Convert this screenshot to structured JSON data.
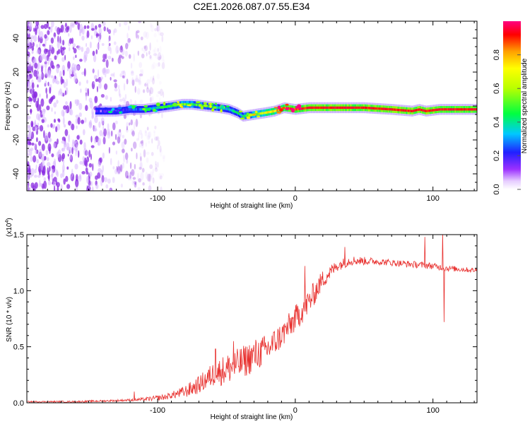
{
  "title": "C2E1.2026.087.07.55.E34",
  "chart_data": [
    {
      "type": "heatmap",
      "name": "spectrogram",
      "xlabel": "Height of straight line (km)",
      "ylabel": "Frequency (Hz)",
      "xlim": [
        -195,
        132
      ],
      "ylim": [
        -50,
        50
      ],
      "xticks": [
        -100,
        0,
        100
      ],
      "xtick_labels": [
        "-100",
        "0",
        "100"
      ],
      "yticks": [
        -40,
        -20,
        0,
        20,
        40
      ],
      "ytick_labels": [
        "-40",
        "-20",
        "0",
        "20",
        "40"
      ],
      "noise_region_km": [
        -195,
        -100
      ],
      "ridge": {
        "x": [
          -140,
          -130,
          -120,
          -110,
          -100,
          -90,
          -82,
          -75,
          -65,
          -55,
          -48,
          -42,
          -38,
          -30,
          -22,
          -15,
          -8,
          0,
          10,
          30,
          50,
          70,
          85,
          90,
          95,
          105,
          132
        ],
        "y": [
          -3,
          -3,
          -2,
          -2,
          -1,
          0,
          1,
          1,
          0,
          -1,
          -2,
          -4,
          -6,
          -5,
          -4,
          -3,
          -1,
          -2,
          -1,
          -1,
          -1,
          -2,
          -3,
          -2,
          -3,
          -2,
          -2
        ],
        "amplitude": [
          0.15,
          0.2,
          0.25,
          0.3,
          0.35,
          0.45,
          0.55,
          0.5,
          0.45,
          0.4,
          0.35,
          0.4,
          0.45,
          0.55,
          0.7,
          0.75,
          0.85,
          0.9,
          0.95,
          0.95,
          0.95,
          0.95,
          0.95,
          0.95,
          0.95,
          0.95,
          0.95
        ]
      },
      "colorbar": {
        "label": "Normalized spectral amplitude",
        "ticks": [
          0.0,
          0.2,
          0.4,
          0.6,
          0.8
        ],
        "tick_labels": [
          "0.0",
          "0.2",
          "0.4",
          "0.6",
          "0.8"
        ],
        "range": [
          0,
          1
        ]
      }
    },
    {
      "type": "line",
      "name": "snr",
      "xlabel": "Height of straight line (km)",
      "ylabel": "SNR (10 * v/v)",
      "multiplier_label": "(x10",
      "multiplier_exponent": "4",
      "multiplier_close": ")",
      "xlim": [
        -195,
        132
      ],
      "ylim": [
        0,
        1.5
      ],
      "xticks": [
        -100,
        0,
        100
      ],
      "xtick_labels": [
        "-100",
        "0",
        "100"
      ],
      "yticks": [
        0,
        0.5,
        1.0,
        1.5
      ],
      "ytick_labels": [
        "0.0",
        "0.5",
        "1.0",
        "1.5"
      ],
      "line_color": "#e8312f",
      "trend": {
        "x": [
          -195,
          -160,
          -130,
          -110,
          -95,
          -80,
          -70,
          -60,
          -50,
          -40,
          -30,
          -20,
          -10,
          0,
          10,
          20,
          30,
          40,
          60,
          80,
          100,
          110,
          132
        ],
        "y": [
          0.01,
          0.01,
          0.02,
          0.03,
          0.05,
          0.1,
          0.16,
          0.25,
          0.3,
          0.35,
          0.42,
          0.48,
          0.6,
          0.75,
          0.9,
          1.1,
          1.22,
          1.27,
          1.26,
          1.24,
          1.22,
          1.2,
          1.18
        ]
      },
      "noise_amplitude": {
        "x": [
          -195,
          -120,
          -90,
          -70,
          -50,
          -30,
          -10,
          10,
          30,
          60,
          100,
          132
        ],
        "y": [
          0.005,
          0.01,
          0.03,
          0.08,
          0.14,
          0.15,
          0.12,
          0.12,
          0.05,
          0.03,
          0.03,
          0.02
        ]
      },
      "spikes": [
        {
          "x": -117,
          "y": 0.1
        },
        {
          "x": -58,
          "y": 0.48
        },
        {
          "x": -45,
          "y": 0.55
        },
        {
          "x": 7,
          "y": 1.22
        },
        {
          "x": 36,
          "y": 1.39
        },
        {
          "x": 94,
          "y": 1.48
        },
        {
          "x": 107,
          "y": 1.53
        },
        {
          "x": 108,
          "y": 0.72
        }
      ]
    }
  ]
}
